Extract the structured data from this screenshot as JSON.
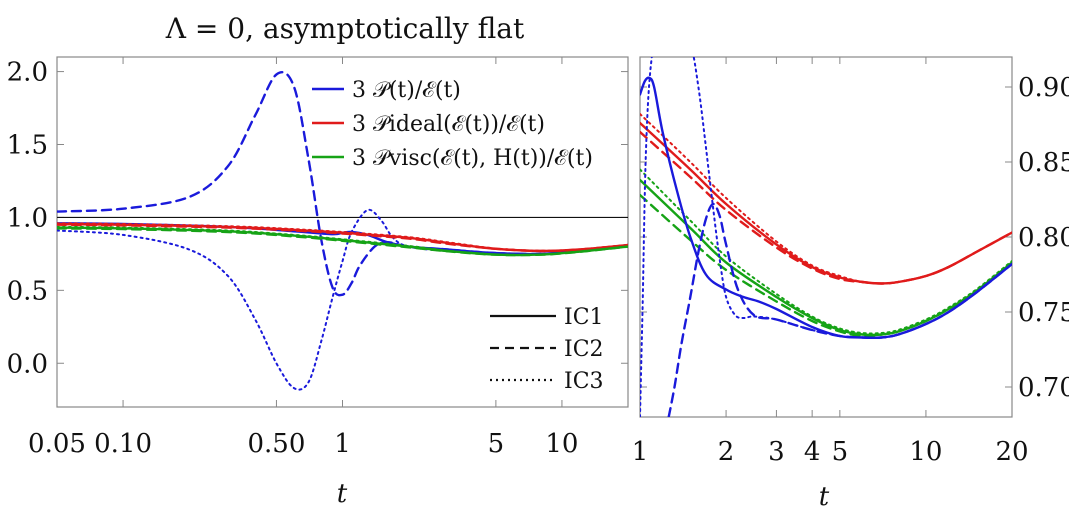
{
  "chart_data": [
    {
      "type": "line",
      "title": "Λ = 0, asymptotically flat",
      "xlabel": "t",
      "ylabel": "",
      "xscale": "log",
      "xlim": [
        0.05,
        20
      ],
      "ylim": [
        -0.3,
        2.1
      ],
      "x_ticks": [
        {
          "v": 0.05,
          "label": "0.05"
        },
        {
          "v": 0.1,
          "label": "0.10"
        },
        {
          "v": 0.5,
          "label": "0.50"
        },
        {
          "v": 1,
          "label": "1"
        },
        {
          "v": 5,
          "label": "5"
        },
        {
          "v": 10,
          "label": "10"
        }
      ],
      "y_ticks": [
        {
          "v": 0.0,
          "label": "0.0"
        },
        {
          "v": 0.5,
          "label": "0.5"
        },
        {
          "v": 1.0,
          "label": "1.0"
        },
        {
          "v": 1.5,
          "label": "1.5"
        },
        {
          "v": 2.0,
          "label": "2.0"
        }
      ],
      "reference_line": 1.0,
      "legend_colors": {
        "title": "top-right",
        "entries": [
          {
            "label": "3 𝒫(t)/ℰ(t)",
            "color": "#1a1adb"
          },
          {
            "label": "3 𝒫ideal(ℰ(t))/ℰ(t)",
            "color": "#e01b1b"
          },
          {
            "label": "3 𝒫visc(ℰ(t), H(t))/ℰ(t)",
            "color": "#16a316"
          }
        ]
      },
      "legend_styles": {
        "placement": "bottom-right",
        "entries": [
          {
            "label": "IC1",
            "dash": "solid"
          },
          {
            "label": "IC2",
            "dash": "dashed"
          },
          {
            "label": "IC3",
            "dash": "dotted"
          }
        ]
      },
      "series": [
        {
          "color": "#1a1adb",
          "dash": "solid",
          "x": [
            0.05,
            0.1,
            0.3,
            0.6,
            0.9,
            1.0,
            1.1,
            1.3,
            1.6,
            2,
            3,
            5,
            8,
            12,
            20
          ],
          "y": [
            0.96,
            0.955,
            0.935,
            0.905,
            0.885,
            0.895,
            0.9,
            0.88,
            0.83,
            0.8,
            0.78,
            0.755,
            0.75,
            0.77,
            0.81
          ]
        },
        {
          "color": "#1a1adb",
          "dash": "dashed",
          "x": [
            0.05,
            0.1,
            0.2,
            0.3,
            0.4,
            0.5,
            0.6,
            0.7,
            0.8,
            0.9,
            1.0,
            1.1,
            1.2,
            1.4,
            1.6,
            2,
            3,
            5,
            8,
            12,
            20
          ],
          "y": [
            1.04,
            1.06,
            1.14,
            1.35,
            1.7,
            1.98,
            1.9,
            1.4,
            0.85,
            0.52,
            0.47,
            0.55,
            0.67,
            0.8,
            0.83,
            0.8,
            0.78,
            0.755,
            0.75,
            0.77,
            0.81
          ]
        },
        {
          "color": "#1a1adb",
          "dash": "dotted",
          "x": [
            0.05,
            0.1,
            0.2,
            0.3,
            0.4,
            0.5,
            0.6,
            0.7,
            0.8,
            0.9,
            1.0,
            1.1,
            1.3,
            1.5,
            1.7,
            2,
            3,
            5,
            8,
            12,
            20
          ],
          "y": [
            0.91,
            0.88,
            0.78,
            0.6,
            0.3,
            0.0,
            -0.17,
            -0.13,
            0.15,
            0.45,
            0.7,
            0.9,
            1.05,
            0.98,
            0.86,
            0.8,
            0.77,
            0.755,
            0.75,
            0.77,
            0.81
          ]
        },
        {
          "color": "#e01b1b",
          "dash": "solid",
          "x": [
            0.05,
            0.1,
            0.3,
            0.6,
            1,
            2,
            3,
            5,
            8,
            12,
            20
          ],
          "y": [
            0.955,
            0.95,
            0.935,
            0.915,
            0.895,
            0.86,
            0.825,
            0.785,
            0.77,
            0.78,
            0.81
          ]
        },
        {
          "color": "#e01b1b",
          "dash": "dashed",
          "x": [
            0.05,
            0.1,
            0.3,
            0.6,
            1,
            2,
            3,
            5,
            8,
            12,
            20
          ],
          "y": [
            0.95,
            0.945,
            0.93,
            0.91,
            0.89,
            0.855,
            0.82,
            0.785,
            0.77,
            0.78,
            0.81
          ]
        },
        {
          "color": "#e01b1b",
          "dash": "dotted",
          "x": [
            0.05,
            0.1,
            0.3,
            0.6,
            1,
            2,
            3,
            5,
            8,
            12,
            20
          ],
          "y": [
            0.96,
            0.955,
            0.94,
            0.92,
            0.9,
            0.865,
            0.83,
            0.787,
            0.772,
            0.781,
            0.812
          ]
        },
        {
          "color": "#16a316",
          "dash": "solid",
          "x": [
            0.05,
            0.1,
            0.3,
            0.6,
            1,
            2,
            3,
            5,
            8,
            12,
            20
          ],
          "y": [
            0.93,
            0.925,
            0.905,
            0.875,
            0.845,
            0.8,
            0.77,
            0.745,
            0.745,
            0.765,
            0.8
          ]
        },
        {
          "color": "#16a316",
          "dash": "dashed",
          "x": [
            0.05,
            0.1,
            0.3,
            0.6,
            1,
            2,
            3,
            5,
            8,
            12,
            20
          ],
          "y": [
            0.925,
            0.92,
            0.9,
            0.87,
            0.84,
            0.795,
            0.768,
            0.744,
            0.744,
            0.764,
            0.8
          ]
        },
        {
          "color": "#16a316",
          "dash": "dotted",
          "x": [
            0.05,
            0.1,
            0.3,
            0.6,
            1,
            2,
            3,
            5,
            8,
            12,
            20
          ],
          "y": [
            0.935,
            0.93,
            0.91,
            0.88,
            0.85,
            0.805,
            0.772,
            0.746,
            0.746,
            0.766,
            0.801
          ]
        }
      ]
    },
    {
      "type": "line",
      "title": "",
      "xlabel": "t",
      "ylabel": "",
      "xscale": "log",
      "xlim": [
        1,
        20
      ],
      "ylim": [
        0.68,
        0.92
      ],
      "y_axis_side": "right",
      "x_ticks": [
        {
          "v": 1,
          "label": "1"
        },
        {
          "v": 2,
          "label": "2"
        },
        {
          "v": 3,
          "label": "3"
        },
        {
          "v": 4,
          "label": "4"
        },
        {
          "v": 5,
          "label": "5"
        },
        {
          "v": 10,
          "label": "10"
        },
        {
          "v": 20,
          "label": "20"
        }
      ],
      "y_ticks": [
        {
          "v": 0.7,
          "label": "0.70"
        },
        {
          "v": 0.75,
          "label": "0.75"
        },
        {
          "v": 0.8,
          "label": "0.80"
        },
        {
          "v": 0.85,
          "label": "0.85"
        },
        {
          "v": 0.9,
          "label": "0.90"
        }
      ],
      "series": [
        {
          "color": "#e01b1b",
          "dash": "solid",
          "x": [
            1,
            1.5,
            2,
            3,
            4,
            5,
            6,
            7,
            8,
            10,
            12,
            15,
            20
          ],
          "y": [
            0.876,
            0.845,
            0.822,
            0.795,
            0.78,
            0.773,
            0.77,
            0.769,
            0.77,
            0.774,
            0.78,
            0.79,
            0.803
          ]
        },
        {
          "color": "#e01b1b",
          "dash": "dashed",
          "x": [
            1,
            1.5,
            2,
            3,
            4,
            5,
            6,
            7,
            8,
            10,
            12,
            15,
            20
          ],
          "y": [
            0.87,
            0.84,
            0.818,
            0.793,
            0.779,
            0.772,
            0.77,
            0.769,
            0.77,
            0.774,
            0.78,
            0.79,
            0.803
          ]
        },
        {
          "color": "#e01b1b",
          "dash": "dotted",
          "x": [
            1,
            1.5,
            2,
            3,
            4,
            5,
            6,
            7,
            8,
            10,
            12,
            15,
            20
          ],
          "y": [
            0.882,
            0.85,
            0.826,
            0.797,
            0.781,
            0.774,
            0.77,
            0.769,
            0.77,
            0.774,
            0.78,
            0.79,
            0.803
          ]
        },
        {
          "color": "#16a316",
          "dash": "solid",
          "x": [
            1,
            1.5,
            2,
            3,
            4,
            5,
            6,
            7,
            8,
            10,
            12,
            15,
            20
          ],
          "y": [
            0.838,
            0.806,
            0.783,
            0.76,
            0.746,
            0.738,
            0.735,
            0.735,
            0.737,
            0.744,
            0.752,
            0.764,
            0.783
          ]
        },
        {
          "color": "#16a316",
          "dash": "dashed",
          "x": [
            1,
            1.5,
            2,
            3,
            4,
            5,
            6,
            7,
            8,
            10,
            12,
            15,
            20
          ],
          "y": [
            0.828,
            0.798,
            0.778,
            0.757,
            0.744,
            0.737,
            0.734,
            0.735,
            0.737,
            0.744,
            0.752,
            0.764,
            0.783
          ]
        },
        {
          "color": "#16a316",
          "dash": "dotted",
          "x": [
            1,
            1.5,
            2,
            3,
            4,
            5,
            6,
            7,
            8,
            10,
            12,
            15,
            20
          ],
          "y": [
            0.845,
            0.811,
            0.787,
            0.762,
            0.747,
            0.739,
            0.736,
            0.736,
            0.738,
            0.745,
            0.753,
            0.765,
            0.784
          ]
        },
        {
          "color": "#1a1adb",
          "dash": "solid",
          "x": [
            1,
            1.04,
            1.08,
            1.12,
            1.2,
            1.35,
            1.5,
            1.7,
            2,
            2.3,
            2.6,
            3,
            4,
            5,
            6,
            7,
            8,
            10,
            12,
            15,
            20
          ],
          "y": [
            0.895,
            0.904,
            0.906,
            0.9,
            0.87,
            0.83,
            0.8,
            0.775,
            0.765,
            0.76,
            0.757,
            0.752,
            0.74,
            0.734,
            0.733,
            0.733,
            0.735,
            0.742,
            0.75,
            0.763,
            0.782
          ]
        },
        {
          "color": "#1a1adb",
          "dash": "dashed",
          "x": [
            1.26,
            1.32,
            1.4,
            1.5,
            1.6,
            1.7,
            1.8,
            1.9,
            2,
            2.2,
            2.5,
            3,
            4,
            5,
            6,
            7,
            8,
            10,
            12,
            15,
            20
          ],
          "y": [
            0.68,
            0.7,
            0.73,
            0.76,
            0.79,
            0.812,
            0.822,
            0.814,
            0.795,
            0.765,
            0.748,
            0.745,
            0.738,
            0.734,
            0.733,
            0.733,
            0.735,
            0.742,
            0.75,
            0.763,
            0.782
          ]
        },
        {
          "color": "#1a1adb",
          "dash": "dotted",
          "x": [
            1.0,
            1.02,
            1.05,
            1.1,
            1.2,
            1.35,
            1.5,
            1.6,
            1.7,
            1.8,
            1.9,
            2,
            2.15,
            2.3,
            2.5,
            3,
            4,
            5,
            6,
            7,
            8,
            10,
            12,
            15,
            20
          ],
          "y": [
            0.68,
            0.75,
            0.86,
            0.92,
            0.95,
            0.95,
            0.93,
            0.9,
            0.86,
            0.82,
            0.785,
            0.76,
            0.748,
            0.746,
            0.747,
            0.745,
            0.738,
            0.734,
            0.733,
            0.733,
            0.735,
            0.742,
            0.75,
            0.763,
            0.782
          ]
        }
      ]
    }
  ]
}
